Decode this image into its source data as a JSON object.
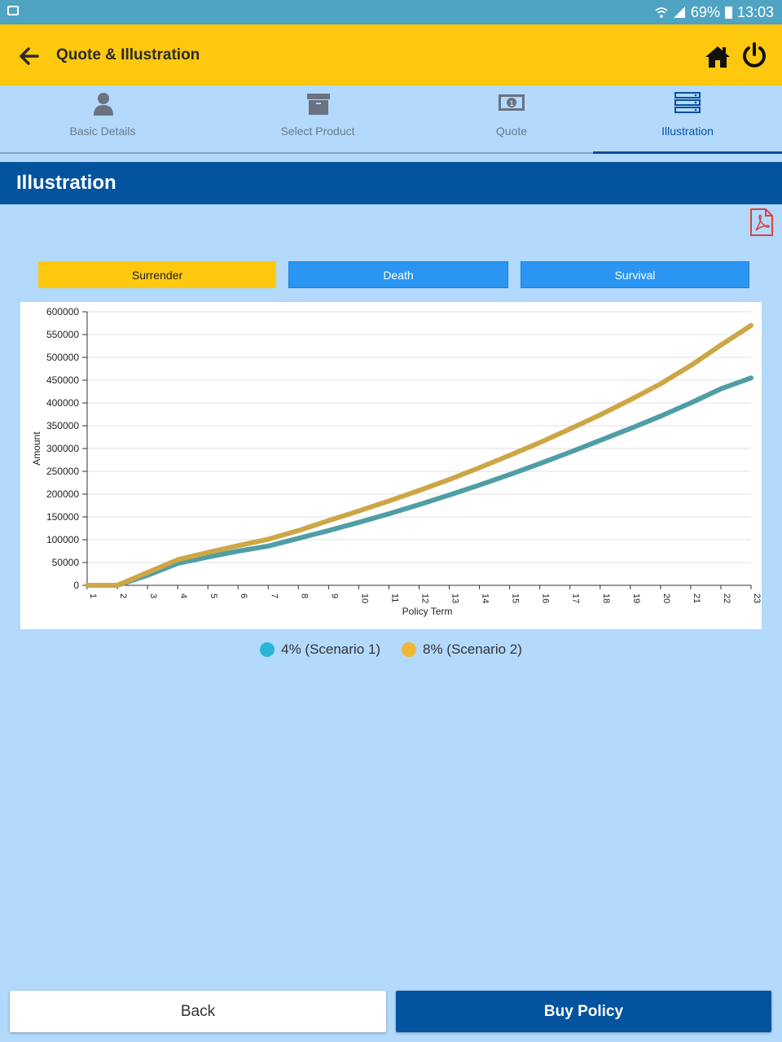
{
  "status_bar": {
    "battery": "69%",
    "time": "13:03"
  },
  "app_bar": {
    "title": "Quote & Illustration"
  },
  "tabs": [
    {
      "label": "Basic Details",
      "icon": "person-icon",
      "active": false
    },
    {
      "label": "Select Product",
      "icon": "archive-box-icon",
      "active": false
    },
    {
      "label": "Quote",
      "icon": "money-icon",
      "active": false
    },
    {
      "label": "Illustration",
      "icon": "server-list-icon",
      "active": true
    }
  ],
  "section": {
    "title": "Illustration"
  },
  "segments": {
    "surrender": "Surrender",
    "death": "Death",
    "survival": "Survival",
    "selected": "Surrender"
  },
  "colors": {
    "accent": "#fdc80e",
    "primary": "#03539e",
    "segment_blue": "#2a96f2",
    "background": "#b3d9fc"
  },
  "chart_data": {
    "type": "line",
    "xlabel": "Policy Term",
    "ylabel": "Amount",
    "x": [
      1,
      2,
      3,
      4,
      5,
      6,
      7,
      8,
      9,
      10,
      11,
      12,
      13,
      14,
      15,
      16,
      17,
      18,
      19,
      20,
      21,
      22,
      23
    ],
    "ylim": [
      0,
      600000
    ],
    "yticks": [
      0,
      50000,
      100000,
      150000,
      200000,
      250000,
      300000,
      350000,
      400000,
      450000,
      500000,
      550000,
      600000
    ],
    "grid": true,
    "series": [
      {
        "name": "4% (Scenario 1)",
        "color": "#4f9ea6",
        "legend_color": "#2bb5d4",
        "values": [
          0,
          0,
          22000,
          48000,
          62000,
          75000,
          86000,
          103000,
          120000,
          138000,
          157000,
          177000,
          198000,
          220000,
          243000,
          267000,
          292000,
          318000,
          344000,
          371000,
          400000,
          431000,
          455000
        ]
      },
      {
        "name": "8% (Scenario 2)",
        "color": "#cda646",
        "legend_color": "#f2b636",
        "values": [
          0,
          0,
          28000,
          56000,
          72000,
          87000,
          101000,
          120000,
          142000,
          163000,
          185000,
          208000,
          232000,
          258000,
          285000,
          313000,
          343000,
          374000,
          407000,
          442000,
          482000,
          527000,
          570000
        ]
      }
    ]
  },
  "buttons": {
    "back": "Back",
    "buy": "Buy Policy"
  }
}
